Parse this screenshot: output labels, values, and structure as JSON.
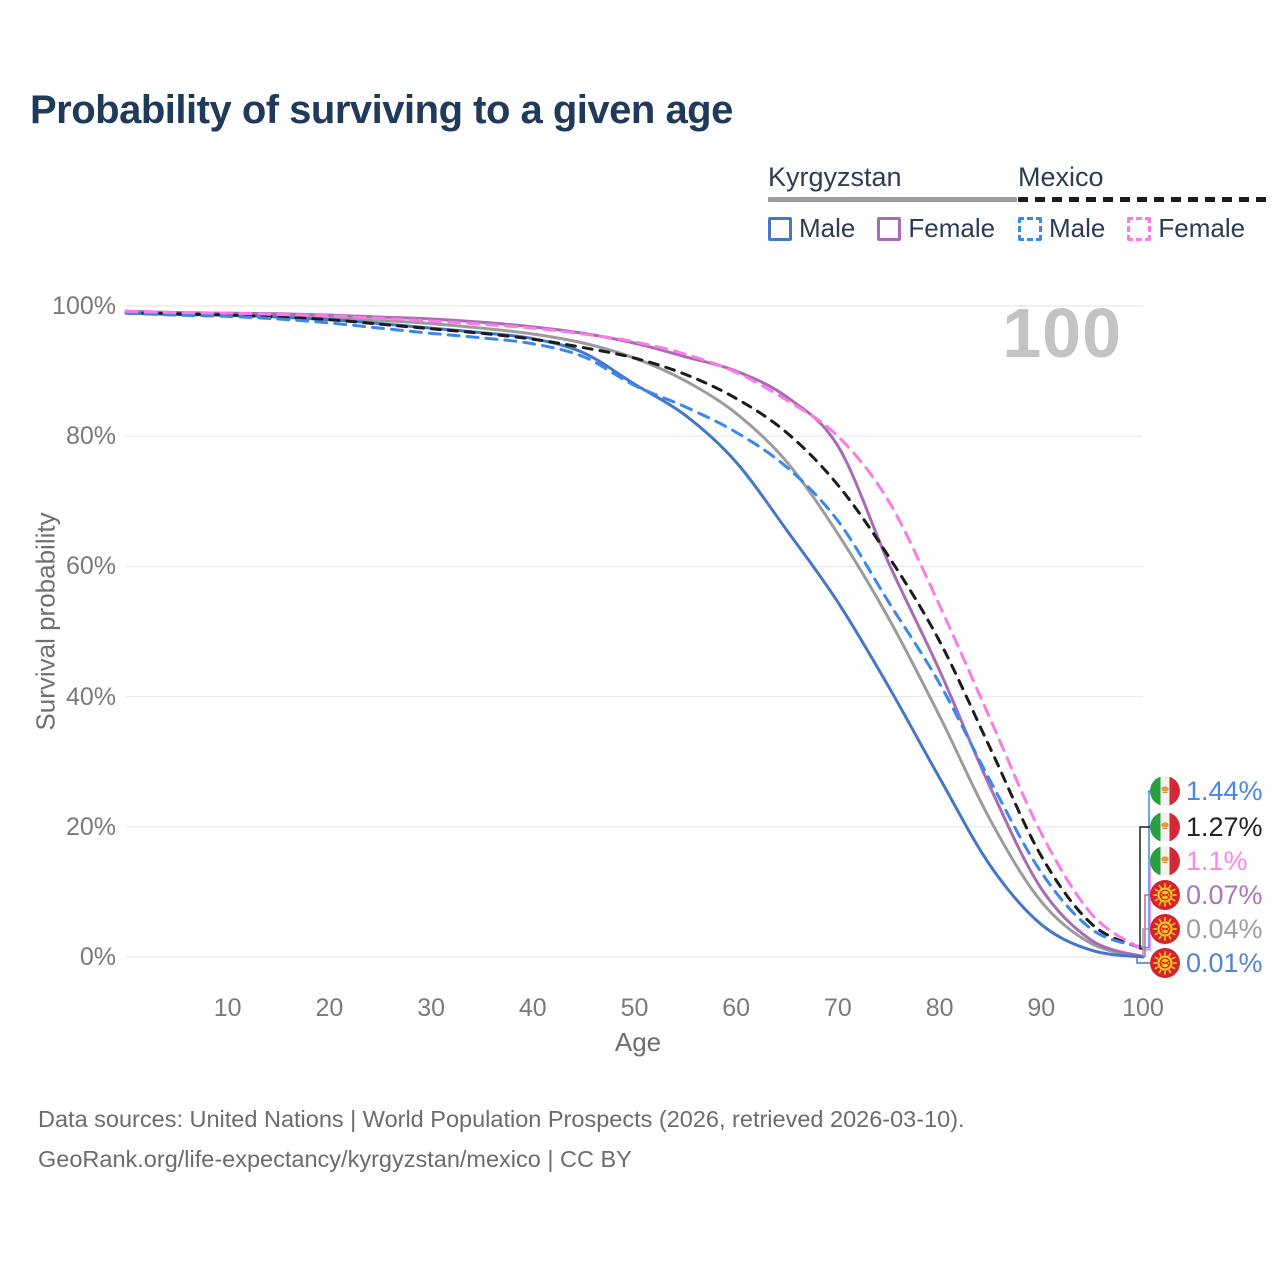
{
  "title": "Probability of surviving to a given age",
  "watermark": "100",
  "legend": {
    "countries": [
      {
        "name": "Kyrgyzstan",
        "line_style": "solid",
        "line_color": "#9c9c9c",
        "items": [
          {
            "label": "Male",
            "color": "#4577c6",
            "dashed": false
          },
          {
            "label": "Female",
            "color": "#a76db4",
            "dashed": false
          }
        ]
      },
      {
        "name": "Mexico",
        "line_style": "dashed",
        "line_color": "#1c1c1c",
        "items": [
          {
            "label": "Male",
            "color": "#3b87f0",
            "dashed": true
          },
          {
            "label": "Female",
            "color": "#fb7ae4",
            "dashed": true
          }
        ]
      }
    ]
  },
  "axes": {
    "y": {
      "label": "Survival probability",
      "ticks": [
        "100%",
        "80%",
        "60%",
        "40%",
        "20%",
        "0%"
      ]
    },
    "x": {
      "label": "Age",
      "ticks": [
        "10",
        "20",
        "30",
        "40",
        "50",
        "60",
        "70",
        "80",
        "90",
        "100"
      ]
    }
  },
  "end_labels": [
    {
      "flag": "mexico",
      "series": "mx_male",
      "value": "1.44%",
      "color": "#4a86e8"
    },
    {
      "flag": "mexico",
      "series": "mx_total",
      "value": "1.27%",
      "color": "#222222"
    },
    {
      "flag": "mexico",
      "series": "mx_female",
      "value": "1.1%",
      "color": "#ff85ee"
    },
    {
      "flag": "kyrgyzstan",
      "series": "kg_female",
      "value": "0.07%",
      "color": "#ab74bc"
    },
    {
      "flag": "kyrgyzstan",
      "series": "kg_total",
      "value": "0.04%",
      "color": "#9e9e9e"
    },
    {
      "flag": "kyrgyzstan",
      "series": "kg_male",
      "value": "0.01%",
      "color": "#5585c8"
    }
  ],
  "footer": {
    "line1": "Data sources: United Nations | World Population Prospects (2026, retrieved 2026-03-10).",
    "line2": "GeoRank.org/life-expectancy/kyrgyzstan/mexico | CC BY"
  },
  "chart_data": {
    "type": "line",
    "title": "Probability of surviving to a given age",
    "xlabel": "Age",
    "ylabel": "Survival probability",
    "xlim": [
      0,
      100
    ],
    "ylim": [
      0,
      100
    ],
    "grid": "horizontal-only",
    "grid_color": "#ebebeb",
    "legend_position": "top-right",
    "y_ticks_percent": [
      100,
      80,
      60,
      40,
      20,
      0
    ],
    "x": [
      0,
      5,
      10,
      15,
      20,
      25,
      30,
      35,
      40,
      45,
      50,
      55,
      60,
      65,
      70,
      75,
      80,
      85,
      90,
      95,
      100
    ],
    "series": [
      {
        "id": "kg_total",
        "name": "Kyrgyzstan (both sexes)",
        "country": "Kyrgyzstan",
        "sex": "total",
        "color": "#9c9c9c",
        "dash": "solid",
        "end_label": "0.04%",
        "values": [
          99.0,
          98.8,
          98.7,
          98.5,
          98.2,
          97.8,
          97.3,
          96.6,
          95.7,
          94.3,
          92.0,
          88.5,
          83.5,
          76.0,
          65.0,
          52.0,
          37.0,
          21.0,
          8.5,
          2.0,
          0.04
        ]
      },
      {
        "id": "kg_female",
        "name": "Kyrgyzstan Female",
        "country": "Kyrgyzstan",
        "sex": "female",
        "color": "#a76db4",
        "dash": "solid",
        "end_label": "0.07%",
        "values": [
          99.2,
          99.0,
          98.9,
          98.8,
          98.6,
          98.3,
          98.0,
          97.5,
          96.8,
          95.8,
          94.3,
          92.2,
          90.0,
          86.0,
          78.5,
          60.5,
          44.0,
          26.0,
          10.5,
          2.5,
          0.07
        ]
      },
      {
        "id": "kg_male",
        "name": "Kyrgyzstan Male",
        "country": "Kyrgyzstan",
        "sex": "male",
        "color": "#4577c6",
        "dash": "solid",
        "end_label": "0.01%",
        "values": [
          98.9,
          98.7,
          98.6,
          98.3,
          97.9,
          97.3,
          96.6,
          95.9,
          95.0,
          92.8,
          88.0,
          83.2,
          76.0,
          65.5,
          54.5,
          41.5,
          27.5,
          14.0,
          5.0,
          1.0,
          0.01
        ]
      },
      {
        "id": "mx_total",
        "name": "Mexico (both sexes)",
        "country": "Mexico",
        "sex": "total",
        "color": "#1c1c1c",
        "dash": "dashed",
        "end_label": "1.27%",
        "values": [
          99.0,
          98.8,
          98.6,
          98.3,
          97.9,
          97.2,
          96.5,
          95.8,
          94.9,
          93.6,
          92.0,
          89.5,
          85.8,
          80.5,
          72.5,
          61.5,
          48.5,
          32.0,
          15.5,
          5.0,
          1.27
        ]
      },
      {
        "id": "mx_male",
        "name": "Mexico Male",
        "country": "Mexico",
        "sex": "male",
        "color": "#3b87f0",
        "dash": "dashed",
        "end_label": "1.44%",
        "values": [
          98.9,
          98.6,
          98.4,
          98.0,
          97.4,
          96.6,
          95.8,
          95.1,
          94.2,
          92.2,
          87.8,
          84.5,
          80.6,
          75.2,
          67.0,
          54.5,
          42.0,
          27.0,
          13.0,
          4.2,
          1.44
        ]
      },
      {
        "id": "mx_female",
        "name": "Mexico Female",
        "country": "Mexico",
        "sex": "female",
        "color": "#fb7ae4",
        "dash": "dashed",
        "end_label": "1.1%",
        "values": [
          99.2,
          99.0,
          98.9,
          98.7,
          98.5,
          98.1,
          97.7,
          97.2,
          96.6,
          95.7,
          94.5,
          92.6,
          89.8,
          85.5,
          80.0,
          70.0,
          54.0,
          36.5,
          19.0,
          6.5,
          1.1
        ]
      }
    ]
  }
}
